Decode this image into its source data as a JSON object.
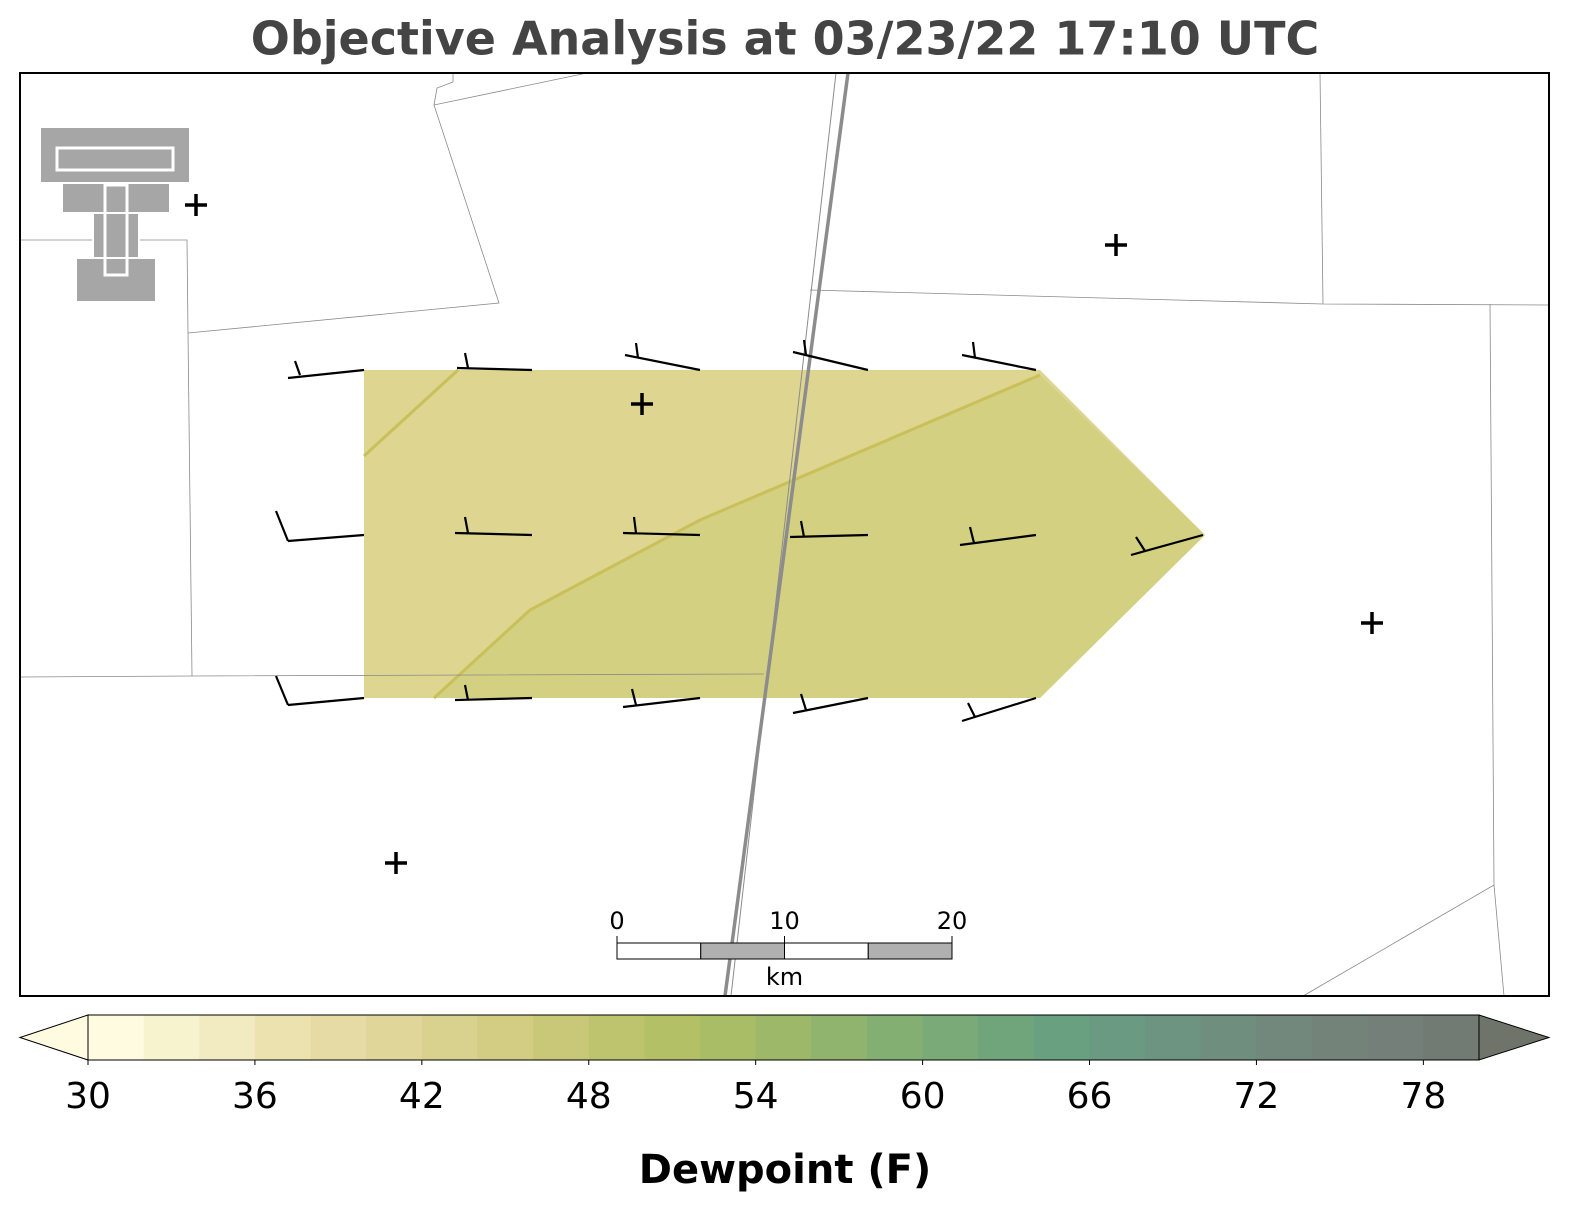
{
  "title": "Objective Analysis at 03/23/22 17:10 UTC",
  "scale_bar": {
    "ticks": [
      0,
      10,
      20
    ],
    "unit": "km",
    "colors": [
      "#ffffff",
      "#b0b0b0"
    ]
  },
  "colorbar": {
    "label": "Dewpoint (F)",
    "lim": [
      30,
      80
    ],
    "ticks": [
      30,
      36,
      42,
      48,
      54,
      60,
      66,
      72,
      78
    ],
    "under_color": "#fefbe0",
    "over_color": "#6e746a",
    "colors": [
      "#fefbe0",
      "#f8f3cf",
      "#f2eac0",
      "#ece2b0",
      "#e6dba4",
      "#e0d69a",
      "#d9d18e",
      "#d2cd83",
      "#c8c878",
      "#bec36e",
      "#b4c066",
      "#a8bd65",
      "#9cb868",
      "#90b46d",
      "#84af72",
      "#7aaa78",
      "#70a57c",
      "#68a080",
      "#6a9a82",
      "#6c9480",
      "#708e7e",
      "#72887c",
      "#73837a",
      "#737f78",
      "#727a74"
    ]
  }
}
